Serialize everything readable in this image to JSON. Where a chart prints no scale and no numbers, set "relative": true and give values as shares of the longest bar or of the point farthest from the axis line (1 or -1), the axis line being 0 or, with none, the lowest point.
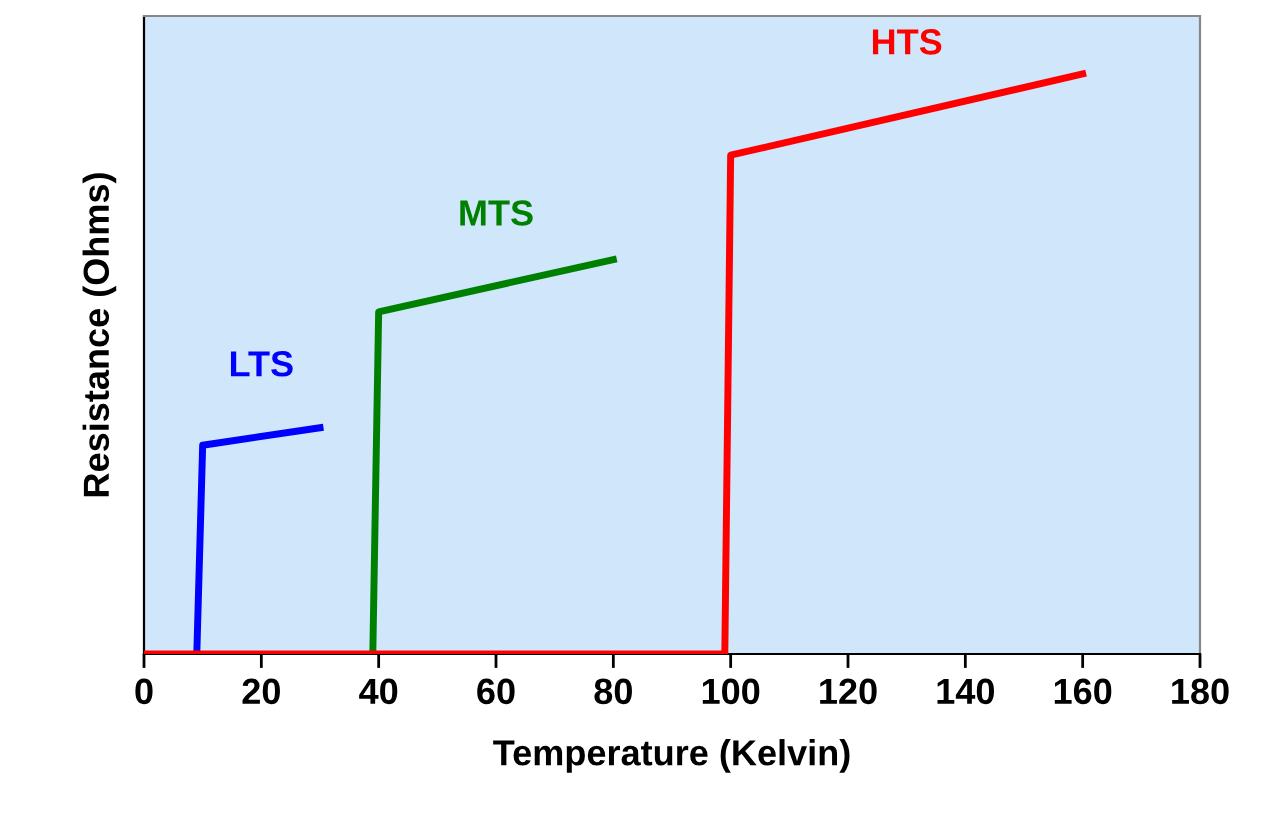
{
  "chart_data": {
    "type": "line",
    "relative": true,
    "xlabel": "Temperature (Kelvin)",
    "ylabel": "Resistance (Ohms)",
    "xlim": [
      0,
      180
    ],
    "xticks": [
      0,
      20,
      40,
      60,
      80,
      100,
      120,
      140,
      160,
      180
    ],
    "grid": false,
    "legend": false,
    "marker": "none",
    "line_style": "solid",
    "series": [
      {
        "name": "LTS",
        "color": "#0000ff",
        "x": [
          9,
          10,
          30
        ],
        "values": [
          0,
          0.36,
          0.39
        ]
      },
      {
        "name": "MTS",
        "color": "#008000",
        "x": [
          39,
          40,
          80
        ],
        "values": [
          0,
          0.59,
          0.68
        ]
      },
      {
        "name": "HTS",
        "color": "#ff0000",
        "x": [
          0,
          99,
          100,
          160
        ],
        "values": [
          0,
          0,
          0.86,
          1
        ]
      }
    ]
  }
}
